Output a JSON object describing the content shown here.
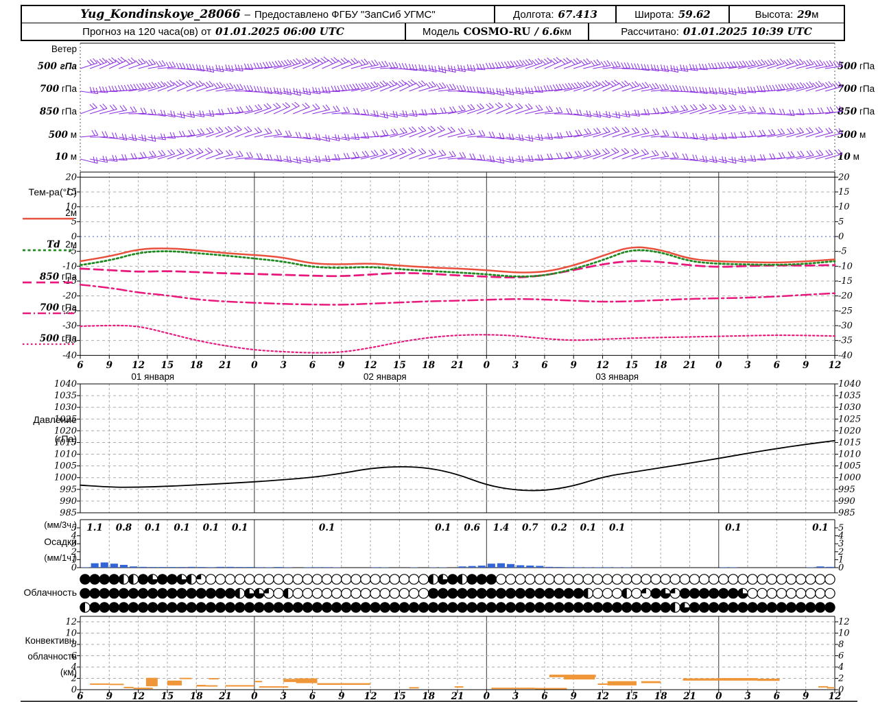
{
  "header": {
    "station": "Yug_Kondinskoye_28066",
    "dash": "–",
    "provided": "Предоставлено ФГБУ \"ЗапСиб УГМС\"",
    "lon_label": "Долгота:",
    "lon": "67.413",
    "lat_label": "Широта:",
    "lat": "59.62",
    "alt_label": "Высота:",
    "alt": "29",
    "alt_unit": "м",
    "forecast_label": "Прогноз на 120 часа(ов) от",
    "forecast_time": "01.01.2025 06:00 UTC",
    "model_label": "Модель",
    "model_name": "COSMO-RU",
    "model_res": "/ 6.6",
    "model_res_unit": "км",
    "calc_label": "Рассчитано:",
    "calc_time": "01.01.2025 10:39 UTC"
  },
  "panel_labels": {
    "wind": "Ветер",
    "temp": "Тем-ра(°C)",
    "pressure1": "Давление",
    "pressure2": "(гПа)",
    "precip1": "(мм/3ч.)",
    "precip2": "Осадки",
    "precip3": "(мм/1ч.)",
    "cloud": "Облачность",
    "conv1": "Конвективн.",
    "conv2": "облачность",
    "conv3": "(км)"
  },
  "wind_levels_labels": [
    {
      "num": "500",
      "unit": "гПа"
    },
    {
      "num": "700",
      "unit": "гПа"
    },
    {
      "num": "850",
      "unit": "гПа"
    },
    {
      "num": "500",
      "unit": "м"
    },
    {
      "num": "10",
      "unit": "м"
    }
  ],
  "temp_legend": [
    {
      "num": "",
      "unit": "2м"
    },
    {
      "num": "Td",
      "unit": "2м"
    },
    {
      "num": "850",
      "unit": "гПа"
    },
    {
      "num": "700",
      "unit": "гПа"
    },
    {
      "num": "500",
      "unit": "гПа"
    }
  ],
  "colors": {
    "wind_barb": "#8a2be2",
    "t2m": "#e8503c",
    "td2m": "#1f8a1f",
    "t850": "#e8187c",
    "t700": "#e8187c",
    "t500": "#e8187c",
    "pressure": "#000000",
    "precip_bar": "#3465d6",
    "convective_bar": "#ef9639",
    "grid": "#aaaaaa",
    "day_line": "#333333",
    "zero_line": "#4455dd"
  },
  "chart_data": {
    "x_axis": {
      "start": "01.01.2025 06:00 UTC",
      "tick_step_hours": 3,
      "tick_labels": [
        "6",
        "9",
        "12",
        "15",
        "18",
        "21",
        "0",
        "3",
        "6",
        "9",
        "12",
        "15",
        "18",
        "21",
        "0",
        "3",
        "6",
        "9",
        "12",
        "15",
        "18",
        "21",
        "0",
        "3",
        "6",
        "9",
        "12"
      ],
      "day_boundary_tick_indexes": [
        6,
        14,
        22
      ],
      "dates": [
        {
          "label": "01 января",
          "center_hour": 7.5
        },
        {
          "label": "02 января",
          "center_hour": 31.5
        },
        {
          "label": "03 января",
          "center_hour": 55.5
        }
      ]
    },
    "charts": [
      {
        "id": "wind",
        "type": "barbs",
        "levels": [
          {
            "label": "500 гПа",
            "feathers": 3,
            "angles_deg": [
              18,
              25,
              15,
              0,
              -12,
              -8,
              5,
              18,
              26,
              20,
              8,
              -6,
              -14,
              -8,
              4,
              16,
              24,
              18,
              6,
              -6,
              -12,
              -4,
              6,
              14,
              18,
              12,
              6
            ]
          },
          {
            "label": "700 гПа",
            "feathers": 3,
            "angles_deg": [
              -8,
              2,
              14,
              24,
              18,
              6,
              -8,
              -14,
              -6,
              8,
              20,
              25,
              12,
              -4,
              -14,
              -8,
              6,
              18,
              24,
              14,
              2,
              -8,
              -12,
              -2,
              10,
              18,
              14
            ]
          },
          {
            "label": "850 гПа",
            "feathers": 2,
            "angles_deg": [
              20,
              12,
              -4,
              -14,
              -8,
              6,
              20,
              26,
              14,
              0,
              -14,
              -8,
              2,
              16,
              24,
              18,
              4,
              -10,
              -14,
              -4,
              10,
              18,
              14,
              4,
              -6,
              2,
              12
            ]
          },
          {
            "label": "500 м",
            "feathers": 2,
            "angles_deg": [
              6,
              -10,
              -14,
              2,
              16,
              24,
              14,
              -2,
              -14,
              -8,
              6,
              20,
              24,
              10,
              -6,
              -14,
              -4,
              12,
              20,
              14,
              0,
              -10,
              -4,
              6,
              14,
              18,
              10
            ]
          },
          {
            "label": "10 м",
            "feathers": 2,
            "angles_deg": [
              -14,
              -4,
              10,
              20,
              24,
              10,
              -4,
              -14,
              -8,
              6,
              18,
              24,
              14,
              0,
              -14,
              -8,
              2,
              14,
              24,
              18,
              4,
              -10,
              -14,
              -4,
              8,
              14,
              18
            ]
          }
        ]
      },
      {
        "id": "temperature",
        "type": "line",
        "ylim": [
          -40,
          20
        ],
        "ytick_step": 5,
        "ylabel": "Тем-ра(°C)",
        "series": [
          {
            "name": "2м",
            "values": [
              -8.3,
              -6.8,
              -4.2,
              -3.9,
              -4.6,
              -5.6,
              -6.2,
              -7.0,
              -9.2,
              -9.4,
              -9.0,
              -9.8,
              -10.4,
              -10.8,
              -11.3,
              -12.2,
              -12.0,
              -9.8,
              -6.5,
              -3.2,
              -4.4,
              -7.6,
              -8.4,
              -8.6,
              -8.8,
              -8.4,
              -7.7
            ]
          },
          {
            "name": "Td 2м",
            "values": [
              -9.6,
              -8.2,
              -5.4,
              -4.8,
              -5.6,
              -6.4,
              -7.4,
              -8.4,
              -10.3,
              -10.6,
              -10.2,
              -11.0,
              -11.6,
              -12.1,
              -12.7,
              -13.6,
              -13.2,
              -11.0,
              -8.0,
              -4.2,
              -5.2,
              -8.4,
              -9.2,
              -9.4,
              -9.6,
              -9.2,
              -8.3
            ]
          },
          {
            "name": "850 гПа",
            "values": [
              -10.8,
              -11.3,
              -11.9,
              -11.6,
              -12.0,
              -12.4,
              -12.6,
              -12.9,
              -13.2,
              -13.4,
              -12.8,
              -12.2,
              -12.5,
              -13.1,
              -13.5,
              -13.9,
              -13.1,
              -11.3,
              -9.3,
              -8.1,
              -8.5,
              -9.7,
              -10.3,
              -9.9,
              -9.7,
              -9.8,
              -9.6
            ]
          },
          {
            "name": "700 гПа",
            "values": [
              -16.2,
              -17.2,
              -18.9,
              -19.8,
              -21.2,
              -21.9,
              -22.3,
              -22.7,
              -22.9,
              -23.0,
              -22.6,
              -22.2,
              -21.8,
              -21.6,
              -21.3,
              -21.0,
              -21.2,
              -21.6,
              -22.0,
              -21.8,
              -21.4,
              -21.0,
              -20.8,
              -20.6,
              -20.2,
              -19.6,
              -19.1
            ]
          },
          {
            "name": "500 гПа",
            "values": [
              -30.2,
              -29.9,
              -30.1,
              -32.5,
              -35.0,
              -36.8,
              -38.2,
              -38.8,
              -39.2,
              -39.0,
              -37.5,
              -35.5,
              -34.0,
              -33.2,
              -33.0,
              -33.4,
              -34.4,
              -35.0,
              -34.6,
              -34.2,
              -34.0,
              -33.8,
              -33.6,
              -33.4,
              -33.2,
              -33.3,
              -33.5
            ]
          }
        ]
      },
      {
        "id": "pressure",
        "type": "line",
        "ylim": [
          985,
          1040
        ],
        "ytick_step": 5,
        "ylabel": "Давление (гПа)",
        "values": [
          996.8,
          995.9,
          995.9,
          996.3,
          996.9,
          997.5,
          998.2,
          999.1,
          1000.1,
          1001.8,
          1004.0,
          1004.8,
          1004.2,
          1001.5,
          996.8,
          994.6,
          994.4,
          996.4,
          1000.3,
          1002.3,
          1004.2,
          1006.2,
          1008.2,
          1010.4,
          1012.4,
          1014.2,
          1015.8
        ]
      },
      {
        "id": "precip",
        "type": "bar",
        "ylim": [
          0,
          6
        ],
        "ylabel": "Осадки (мм/1ч.), суммы (мм/3ч.)",
        "hourly_mm": [
          0.05,
          0.55,
          0.65,
          0.5,
          0.35,
          0.15,
          0.1,
          0.08,
          0.08,
          0.08,
          0.08,
          0.1,
          0.08,
          0.06,
          0.1,
          0.1,
          0.08,
          0.08,
          0.06,
          0.05,
          0.08,
          0.05,
          0,
          0.05,
          0.06,
          0.06,
          0.04,
          0,
          0,
          0,
          0.05,
          0.04,
          0,
          0,
          0.04,
          0,
          0.04,
          0.04,
          0,
          0.15,
          0.2,
          0.25,
          0.5,
          0.55,
          0.45,
          0.3,
          0.26,
          0.22,
          0.1,
          0.08,
          0.06,
          0.05,
          0.05,
          0.05,
          0.05,
          0.04,
          0.04,
          0,
          0,
          0,
          0,
          0,
          0,
          0,
          0,
          0,
          0.05,
          0.05,
          0,
          0,
          0,
          0,
          0,
          0,
          0,
          0.05,
          0.15,
          0.1
        ],
        "labels_3h": [
          [
            0,
            "1.1"
          ],
          [
            3,
            "0.8"
          ],
          [
            6,
            "0.1"
          ],
          [
            9,
            "0.1"
          ],
          [
            12,
            "0.1"
          ],
          [
            15,
            "0.1"
          ],
          [
            24,
            "0.1"
          ],
          [
            36,
            "0.1"
          ],
          [
            39,
            "0.6"
          ],
          [
            42,
            "1.4"
          ],
          [
            45,
            "0.7"
          ],
          [
            48,
            "0.2"
          ],
          [
            51,
            "0.1"
          ],
          [
            54,
            "0.1"
          ],
          [
            66,
            "0.1"
          ],
          [
            75,
            "0.1"
          ]
        ]
      },
      {
        "id": "cloud",
        "type": "symbols",
        "fill_code_legend": "0=ясно, 1=четверть, 2=половина, 3=три четверти, 4=сплошная",
        "rows": [
          "444422434432100000000000000000000000234244400000000000000000000000000000000000",
          "444444444444444423310200000000000000444444444444444420002014314444443 0000000",
          "244444444444444444444444444444444444444444444444444444444444423444444444444444"
        ]
      },
      {
        "id": "convective",
        "type": "range-bar",
        "ylim": [
          0,
          12
        ],
        "ytick_step": 2,
        "ylabel": "Конвективн. облачность (км)",
        "segments": [
          [
            1,
            3,
            0.9,
            1.1
          ],
          [
            3,
            4.5,
            0.9,
            1.05
          ],
          [
            4.5,
            5.5,
            0.35,
            0.5
          ],
          [
            5.5,
            7.5,
            0.22,
            0.35
          ],
          [
            6.8,
            8,
            0.6,
            2.1
          ],
          [
            9,
            10.5,
            0.75,
            1.6
          ],
          [
            10.3,
            11.5,
            1.9,
            2.1
          ],
          [
            12,
            13,
            0.55,
            0.85
          ],
          [
            13,
            14.2,
            0.6,
            0.78
          ],
          [
            13.3,
            14.3,
            1.9,
            2.05
          ],
          [
            15,
            18,
            0.55,
            0.8
          ],
          [
            18,
            18.8,
            1.35,
            1.55
          ],
          [
            18.5,
            21.5,
            0.45,
            0.6
          ],
          [
            21,
            22.5,
            1.35,
            1.9
          ],
          [
            22.3,
            24.5,
            1.15,
            2.0
          ],
          [
            24.5,
            30,
            0.85,
            1.15
          ],
          [
            34,
            35,
            0.3,
            0.45
          ],
          [
            38.7,
            39.6,
            0.4,
            0.6
          ],
          [
            42.5,
            47,
            0.2,
            0.35
          ],
          [
            47,
            50.3,
            0.12,
            0.3
          ],
          [
            48.5,
            53.3,
            2.2,
            2.65
          ],
          [
            50,
            53.2,
            1.8,
            2.3
          ],
          [
            53.5,
            54.5,
            0.85,
            1.1
          ],
          [
            54.5,
            57.5,
            0.75,
            1.5
          ],
          [
            58,
            60,
            1.15,
            1.5
          ],
          [
            62.3,
            66,
            1.6,
            2.0
          ],
          [
            66,
            70,
            1.6,
            2.05
          ],
          [
            70,
            72.3,
            1.55,
            1.95
          ],
          [
            76.3,
            77.3,
            0.45,
            0.62
          ],
          [
            77.2,
            78,
            0.3,
            0.45
          ]
        ]
      }
    ]
  }
}
